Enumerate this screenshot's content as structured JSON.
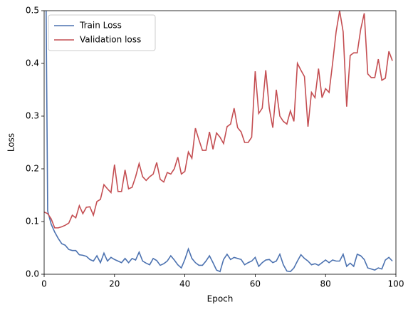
{
  "chart_data": {
    "type": "line",
    "xlabel": "Epoch",
    "ylabel": "Loss",
    "x": [
      0,
      1,
      2,
      3,
      4,
      5,
      6,
      7,
      8,
      9,
      10,
      11,
      12,
      13,
      14,
      15,
      16,
      17,
      18,
      19,
      20,
      21,
      22,
      23,
      24,
      25,
      26,
      27,
      28,
      29,
      30,
      31,
      32,
      33,
      34,
      35,
      36,
      37,
      38,
      39,
      40,
      41,
      42,
      43,
      44,
      45,
      46,
      47,
      48,
      49,
      50,
      51,
      52,
      53,
      54,
      55,
      56,
      57,
      58,
      59,
      60,
      61,
      62,
      63,
      64,
      65,
      66,
      67,
      68,
      69,
      70,
      71,
      72,
      73,
      74,
      75,
      76,
      77,
      78,
      79,
      80,
      81,
      82,
      83,
      84,
      85,
      86,
      87,
      88,
      89,
      90,
      91,
      92,
      93,
      94,
      95,
      96,
      97,
      98,
      99
    ],
    "series": [
      {
        "name": "Train Loss",
        "color": "#4c72b0",
        "values": [
          1.0,
          0.12,
          0.095,
          0.08,
          0.068,
          0.058,
          0.055,
          0.047,
          0.045,
          0.045,
          0.037,
          0.036,
          0.034,
          0.028,
          0.025,
          0.035,
          0.022,
          0.04,
          0.025,
          0.032,
          0.028,
          0.025,
          0.022,
          0.03,
          0.022,
          0.03,
          0.027,
          0.042,
          0.025,
          0.021,
          0.018,
          0.03,
          0.026,
          0.017,
          0.02,
          0.025,
          0.035,
          0.027,
          0.018,
          0.012,
          0.028,
          0.048,
          0.03,
          0.022,
          0.017,
          0.017,
          0.025,
          0.035,
          0.022,
          0.008,
          0.005,
          0.028,
          0.038,
          0.028,
          0.032,
          0.03,
          0.028,
          0.018,
          0.022,
          0.025,
          0.032,
          0.015,
          0.022,
          0.027,
          0.028,
          0.022,
          0.025,
          0.038,
          0.018,
          0.006,
          0.005,
          0.012,
          0.025,
          0.037,
          0.03,
          0.025,
          0.018,
          0.02,
          0.017,
          0.022,
          0.027,
          0.022,
          0.027,
          0.025,
          0.025,
          0.038,
          0.015,
          0.021,
          0.015,
          0.038,
          0.035,
          0.028,
          0.012,
          0.01,
          0.008,
          0.012,
          0.01,
          0.027,
          0.032,
          0.025
        ]
      },
      {
        "name": "Validation loss",
        "color": "#c44e52",
        "values": [
          0.118,
          0.115,
          0.105,
          0.088,
          0.088,
          0.09,
          0.093,
          0.097,
          0.112,
          0.107,
          0.13,
          0.115,
          0.127,
          0.128,
          0.112,
          0.138,
          0.142,
          0.17,
          0.162,
          0.155,
          0.208,
          0.157,
          0.157,
          0.198,
          0.162,
          0.165,
          0.185,
          0.21,
          0.185,
          0.178,
          0.185,
          0.19,
          0.212,
          0.18,
          0.175,
          0.193,
          0.19,
          0.2,
          0.222,
          0.19,
          0.195,
          0.232,
          0.22,
          0.277,
          0.255,
          0.235,
          0.235,
          0.27,
          0.237,
          0.268,
          0.26,
          0.248,
          0.28,
          0.285,
          0.315,
          0.278,
          0.27,
          0.25,
          0.25,
          0.26,
          0.385,
          0.305,
          0.315,
          0.387,
          0.315,
          0.278,
          0.35,
          0.3,
          0.29,
          0.285,
          0.31,
          0.29,
          0.4,
          0.387,
          0.375,
          0.28,
          0.345,
          0.335,
          0.39,
          0.335,
          0.352,
          0.345,
          0.4,
          0.46,
          0.5,
          0.46,
          0.318,
          0.415,
          0.42,
          0.42,
          0.465,
          0.495,
          0.38,
          0.373,
          0.373,
          0.408,
          0.368,
          0.372,
          0.423,
          0.405
        ]
      }
    ],
    "xlim": [
      0,
      100
    ],
    "xticks": [
      0,
      20,
      40,
      60,
      80,
      100
    ],
    "ylim": [
      0,
      0.5
    ],
    "yticks": [
      {
        "value": 0,
        "label": "0.0"
      },
      0.1,
      0.2,
      0.3,
      0.4,
      0.5
    ],
    "legend": "upper left"
  }
}
